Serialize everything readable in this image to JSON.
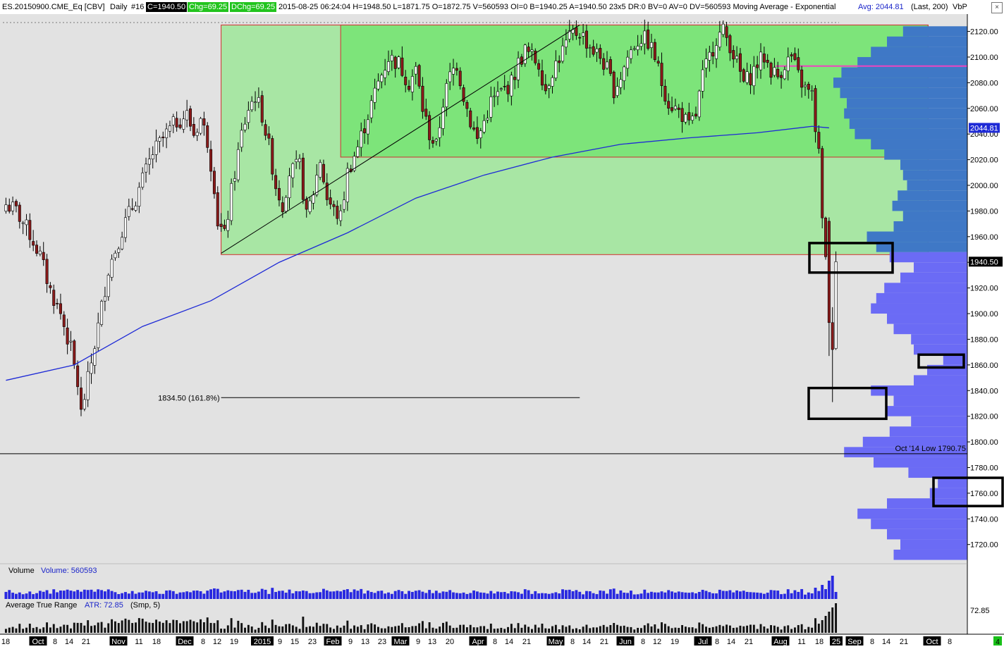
{
  "header": {
    "symbol": "ES.20150900.CME_Eq [CBV]",
    "timeframe": "Daily",
    "bars": "#16",
    "close": "C=1940.50",
    "change": "Chg=69.25",
    "dchange": "DChg=69.25",
    "stats": "2015-08-25 06:24:04 H=1948.50 L=1871.75 O=1872.75 V=560593 OI=0 B=1940.25 A=1940.50 23x5 DR:0 BV=0 AV=0 DV=560593 Moving Average - Exponential",
    "avg": "Avg: 2044.81",
    "last": "(Last, 200)",
    "vbp": "VbP",
    "close_icon": "close-icon",
    "close_glyph": "×"
  },
  "chart_data": {
    "type": "candlestick",
    "price_axis": {
      "range": [
        1705,
        2128
      ],
      "ticks": [
        1720,
        1740,
        1760,
        1780,
        1800,
        1820,
        1840,
        1860,
        1880,
        1900,
        1920,
        1940,
        1960,
        1980,
        2000,
        2020,
        2040,
        2060,
        2080,
        2100,
        2120
      ],
      "tick_labels": [
        "1720.00",
        "1740.00",
        "1760.00",
        "1780.00",
        "1800.00",
        "1820.00",
        "1840.00",
        "1860.00",
        "1880.00",
        "1900.00",
        "1920.00",
        "1940.00",
        "1960.00",
        "1980.00",
        "2000.00",
        "2020.00",
        "2040.00",
        "2060.00",
        "2080.00",
        "2100.00",
        "2120.00"
      ],
      "last_price_label": "1940.50",
      "ema_label": "2044.81"
    },
    "date_axis": [
      {
        "label": "18",
        "hl": false
      },
      {
        "label": "Oct",
        "hl": true
      },
      {
        "label": "8",
        "hl": false
      },
      {
        "label": "14",
        "hl": false
      },
      {
        "label": "21",
        "hl": false
      },
      {
        "label": "Nov",
        "hl": true
      },
      {
        "label": "11",
        "hl": false
      },
      {
        "label": "18",
        "hl": false
      },
      {
        "label": "Dec",
        "hl": true
      },
      {
        "label": "8",
        "hl": false
      },
      {
        "label": "12",
        "hl": false
      },
      {
        "label": "19",
        "hl": false
      },
      {
        "label": "2015",
        "hl": true
      },
      {
        "label": "9",
        "hl": false
      },
      {
        "label": "15",
        "hl": false
      },
      {
        "label": "23",
        "hl": false
      },
      {
        "label": "Feb",
        "hl": true
      },
      {
        "label": "9",
        "hl": false
      },
      {
        "label": "13",
        "hl": false
      },
      {
        "label": "23",
        "hl": false
      },
      {
        "label": "Mar",
        "hl": true
      },
      {
        "label": "9",
        "hl": false
      },
      {
        "label": "13",
        "hl": false
      },
      {
        "label": "20",
        "hl": false
      },
      {
        "label": "Apr",
        "hl": true
      },
      {
        "label": "8",
        "hl": false
      },
      {
        "label": "14",
        "hl": false
      },
      {
        "label": "21",
        "hl": false
      },
      {
        "label": "May",
        "hl": true
      },
      {
        "label": "8",
        "hl": false
      },
      {
        "label": "14",
        "hl": false
      },
      {
        "label": "21",
        "hl": false
      },
      {
        "label": "Jun",
        "hl": true
      },
      {
        "label": "8",
        "hl": false
      },
      {
        "label": "12",
        "hl": false
      },
      {
        "label": "19",
        "hl": false
      },
      {
        "label": "Jul",
        "hl": true
      },
      {
        "label": "8",
        "hl": false
      },
      {
        "label": "14",
        "hl": false
      },
      {
        "label": "21",
        "hl": false
      },
      {
        "label": "Aug",
        "hl": true
      },
      {
        "label": "11",
        "hl": false
      },
      {
        "label": "18",
        "hl": false
      },
      {
        "label": "25",
        "hl": true
      },
      {
        "label": "Sep",
        "hl": true
      },
      {
        "label": "8",
        "hl": false
      },
      {
        "label": "14",
        "hl": false
      },
      {
        "label": "21",
        "hl": false
      },
      {
        "label": "Oct",
        "hl": true
      },
      {
        "label": "8",
        "hl": false
      }
    ],
    "price_path": [
      [
        0,
        1985
      ],
      [
        3,
        1980
      ],
      [
        7,
        1962
      ],
      [
        10,
        1945
      ],
      [
        13,
        1918
      ],
      [
        16,
        1900
      ],
      [
        19,
        1872
      ],
      [
        21,
        1845
      ],
      [
        22,
        1822
      ],
      [
        24,
        1848
      ],
      [
        27,
        1890
      ],
      [
        30,
        1935
      ],
      [
        34,
        1965
      ],
      [
        38,
        1990
      ],
      [
        43,
        2025
      ],
      [
        47,
        2040
      ],
      [
        50,
        2050
      ],
      [
        53,
        2055
      ],
      [
        55,
        2040
      ],
      [
        57,
        2052
      ],
      [
        59,
        2035
      ],
      [
        61,
        2000
      ],
      [
        62,
        1972
      ],
      [
        64,
        1960
      ],
      [
        66,
        1995
      ],
      [
        69,
        2040
      ],
      [
        71,
        2060
      ],
      [
        73,
        2070
      ],
      [
        75,
        2055
      ],
      [
        77,
        2030
      ],
      [
        79,
        2000
      ],
      [
        81,
        1985
      ],
      [
        83,
        2010
      ],
      [
        86,
        2015
      ],
      [
        88,
        1975
      ],
      [
        90,
        1995
      ],
      [
        92,
        2020
      ],
      [
        94,
        1990
      ],
      [
        96,
        1980
      ],
      [
        98,
        1975
      ],
      [
        100,
        2010
      ],
      [
        103,
        2030
      ],
      [
        106,
        2055
      ],
      [
        109,
        2080
      ],
      [
        112,
        2100
      ],
      [
        115,
        2095
      ],
      [
        118,
        2080
      ],
      [
        120,
        2090
      ],
      [
        122,
        2060
      ],
      [
        124,
        2040
      ],
      [
        126,
        2030
      ],
      [
        128,
        2065
      ],
      [
        130,
        2085
      ],
      [
        132,
        2095
      ],
      [
        134,
        2070
      ],
      [
        136,
        2050
      ],
      [
        138,
        2035
      ],
      [
        140,
        2050
      ],
      [
        142,
        2065
      ],
      [
        144,
        2070
      ],
      [
        146,
        2075
      ],
      [
        148,
        2080
      ],
      [
        150,
        2095
      ],
      [
        152,
        2105
      ],
      [
        154,
        2100
      ],
      [
        156,
        2095
      ],
      [
        158,
        2075
      ],
      [
        160,
        2090
      ],
      [
        162,
        2100
      ],
      [
        164,
        2110
      ],
      [
        166,
        2118
      ],
      [
        168,
        2120
      ],
      [
        170,
        2112
      ],
      [
        172,
        2105
      ],
      [
        174,
        2100
      ],
      [
        176,
        2090
      ],
      [
        178,
        2075
      ],
      [
        180,
        2085
      ],
      [
        182,
        2100
      ],
      [
        184,
        2110
      ],
      [
        186,
        2115
      ],
      [
        188,
        2112
      ],
      [
        190,
        2100
      ],
      [
        192,
        2080
      ],
      [
        194,
        2065
      ],
      [
        196,
        2060
      ],
      [
        198,
        2055
      ],
      [
        200,
        2045
      ],
      [
        202,
        2055
      ],
      [
        204,
        2085
      ],
      [
        206,
        2100
      ],
      [
        208,
        2115
      ],
      [
        210,
        2120
      ],
      [
        212,
        2110
      ],
      [
        214,
        2095
      ],
      [
        216,
        2080
      ],
      [
        218,
        2085
      ],
      [
        220,
        2095
      ],
      [
        222,
        2100
      ],
      [
        224,
        2090
      ],
      [
        226,
        2085
      ],
      [
        228,
        2095
      ],
      [
        230,
        2100
      ],
      [
        232,
        2085
      ],
      [
        234,
        2075
      ],
      [
        236,
        2070
      ],
      [
        237,
        2045
      ],
      [
        238,
        2025
      ],
      [
        239,
        1970
      ],
      [
        240,
        1948
      ],
      [
        241,
        1900
      ],
      [
        242,
        1875
      ],
      [
        243,
        1940
      ]
    ],
    "ema200": {
      "label": "Moving Average - Exponential",
      "points": [
        [
          0,
          1848
        ],
        [
          20,
          1860
        ],
        [
          40,
          1890
        ],
        [
          60,
          1910
        ],
        [
          80,
          1940
        ],
        [
          100,
          1963
        ],
        [
          120,
          1990
        ],
        [
          140,
          2008
        ],
        [
          160,
          2022
        ],
        [
          180,
          2032
        ],
        [
          200,
          2037
        ],
        [
          220,
          2041
        ],
        [
          236,
          2046
        ],
        [
          241,
          2044.81
        ]
      ]
    },
    "rectangles": [
      {
        "name": "range-box-outer",
        "bar_from": 63,
        "bar_to": 270,
        "price_high": 2125,
        "price_low": 1946,
        "fill": "#a8e6a4"
      },
      {
        "name": "range-box-inner",
        "bar_from": 98,
        "bar_to": 270,
        "price_high": 2125,
        "price_low": 2022,
        "fill": "#7de47a"
      }
    ],
    "trendline": {
      "from": [
        63,
        1947
      ],
      "to": [
        168,
        2125
      ]
    },
    "fib_line": {
      "label": "1834.50  (161.8%)",
      "price": 1834.5,
      "bar_from": 63,
      "bar_to": 168
    },
    "oct_low_label": "Oct '14 Low  1790.75",
    "oct_low_price": 1790.75,
    "volume_by_price": {
      "prices": [
        1712,
        1720,
        1728,
        1736,
        1744,
        1752,
        1760,
        1768,
        1776,
        1784,
        1792,
        1800,
        1808,
        1816,
        1824,
        1832,
        1840,
        1848,
        1856,
        1864,
        1872,
        1880,
        1888,
        1896,
        1904,
        1912,
        1920,
        1928,
        1936,
        1944,
        1952,
        1960,
        1968,
        1976,
        1984,
        1992,
        2000,
        2008,
        2016,
        2024,
        2032,
        2040,
        2048,
        2056,
        2064,
        2072,
        2080,
        2088,
        2096,
        2104,
        2112,
        2120
      ],
      "volumes": [
        0.55,
        0.5,
        0.6,
        0.72,
        0.82,
        0.6,
        0.28,
        0.22,
        0.44,
        0.7,
        0.92,
        0.78,
        0.58,
        0.42,
        0.6,
        0.55,
        0.72,
        0.4,
        0.3,
        0.18,
        0.4,
        0.42,
        0.55,
        0.6,
        0.72,
        0.68,
        0.62,
        0.5,
        0.4,
        0.58,
        0.68,
        0.75,
        0.55,
        0.48,
        0.56,
        0.52,
        0.45,
        0.48,
        0.5,
        0.62,
        0.72,
        0.84,
        0.88,
        0.92,
        0.9,
        0.95,
        1.0,
        0.94,
        0.82,
        0.72,
        0.6,
        0.48
      ]
    },
    "vbp_hvn_price": 2093,
    "highlight_boxes": [
      {
        "name": "highlight-box-1940",
        "price_high": 1955,
        "price_low": 1932
      },
      {
        "name": "highlight-box-1860",
        "price_high": 1868,
        "price_low": 1858
      },
      {
        "name": "highlight-box-1830",
        "price_high": 1842,
        "price_low": 1818
      },
      {
        "name": "highlight-box-1762",
        "price_high": 1772,
        "price_low": 1750
      }
    ],
    "volume_panel": {
      "label": "Volume",
      "value_label": "Volume: 560593"
    },
    "atr_panel": {
      "label": "Average True Range",
      "value_label": "ATR: 72.85",
      "smoothing": "(Smp, 5)",
      "axis_label": "72.85"
    }
  },
  "colors": {
    "background": "#e2e2e2",
    "up_candle": "#ffffff",
    "down_candle": "#8b1a1a",
    "ema": "#1e2ad6",
    "vbp": "#6b6bf5",
    "vbp_dark": "#3f78c6",
    "volume_bar": "#2828e0",
    "atr_bar": "#111111",
    "hvn_line": "#ee44c0"
  },
  "footer": {
    "corner_badge": "4"
  }
}
